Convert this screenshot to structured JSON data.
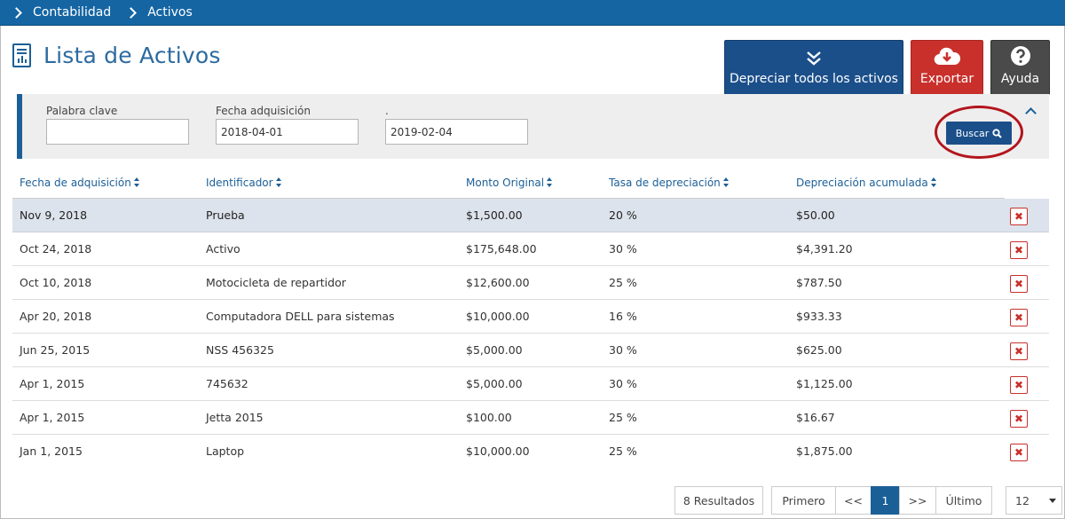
{
  "breadcrumb": [
    "Contabilidad",
    "Activos"
  ],
  "page_title": "Lista de Activos",
  "actions": {
    "depreciar": "Depreciar todos los activos",
    "exportar": "Exportar",
    "ayuda": "Ayuda"
  },
  "filters": {
    "palabra_label": "Palabra clave",
    "palabra_value": "",
    "fecha_label": "Fecha adquisición",
    "fecha_desde": "2018-04-01",
    "hasta_label": ".",
    "fecha_hasta": "2019-02-04",
    "buscar_label": "Buscar"
  },
  "table": {
    "headers": [
      "Fecha de adquisición",
      "Identificador",
      "Monto Original",
      "Tasa de depreciación",
      "Depreciación acumulada"
    ],
    "rows": [
      [
        "Nov 9, 2018",
        "Prueba",
        "$1,500.00",
        "20 %",
        "$50.00"
      ],
      [
        "Oct 24, 2018",
        "Activo",
        "$175,648.00",
        "30 %",
        "$4,391.20"
      ],
      [
        "Oct 10, 2018",
        "Motocicleta de repartidor",
        "$12,600.00",
        "25 %",
        "$787.50"
      ],
      [
        "Apr 20, 2018",
        "Computadora DELL para sistemas",
        "$10,000.00",
        "16 %",
        "$933.33"
      ],
      [
        "Jun 25, 2015",
        "NSS 456325",
        "$5,000.00",
        "30 %",
        "$625.00"
      ],
      [
        "Apr 1, 2015",
        "745632",
        "$5,000.00",
        "30 %",
        "$1,125.00"
      ],
      [
        "Apr 1, 2015",
        "Jetta 2015",
        "$100.00",
        "25 %",
        "$16.67"
      ],
      [
        "Jan 1, 2015",
        "Laptop",
        "$10,000.00",
        "25 %",
        "$1,875.00"
      ]
    ],
    "delete_glyph": "✖"
  },
  "pager": {
    "results": "8 Resultados",
    "first": "Primero",
    "prev": "<<",
    "current": "1",
    "next": ">>",
    "last": "Último",
    "page_size": "12"
  },
  "colors": {
    "primary": "#1b4f8a",
    "danger": "#c9302c",
    "neutral": "#4a4a4a",
    "topbar": "#1565a3"
  }
}
